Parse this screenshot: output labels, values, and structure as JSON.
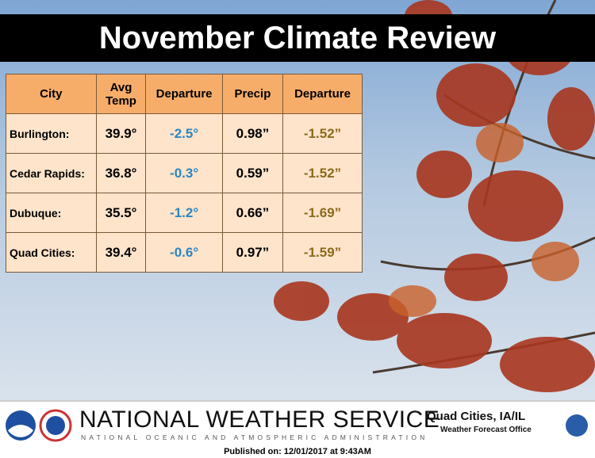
{
  "title": "November Climate Review",
  "table": {
    "header": [
      "City",
      "Avg Temp",
      "Departure",
      "Precip",
      "Departure"
    ],
    "rows": [
      [
        "Burlington:",
        "39.9°",
        "-2.5°",
        "0.98”",
        "-1.52”"
      ],
      [
        "Cedar Rapids:",
        "36.8°",
        "-0.3°",
        "0.59”",
        "-1.52”"
      ],
      [
        "Dubuque:",
        "35.5°",
        "-1.2°",
        "0.66”",
        "-1.69”"
      ],
      [
        "Quad Cities:",
        "39.4°",
        "-0.6°",
        "0.97”",
        "-1.59”"
      ]
    ]
  },
  "footer": {
    "agency": "NATIONAL WEATHER SERVICE",
    "subagency": "NATIONAL OCEANIC AND ATMOSPHERIC ADMINISTRATION",
    "office_location": "Quad Cities, IA/IL",
    "office": "Weather Forecast Office"
  },
  "published": "Published on: 12/01/2017 at 9:43AM"
}
